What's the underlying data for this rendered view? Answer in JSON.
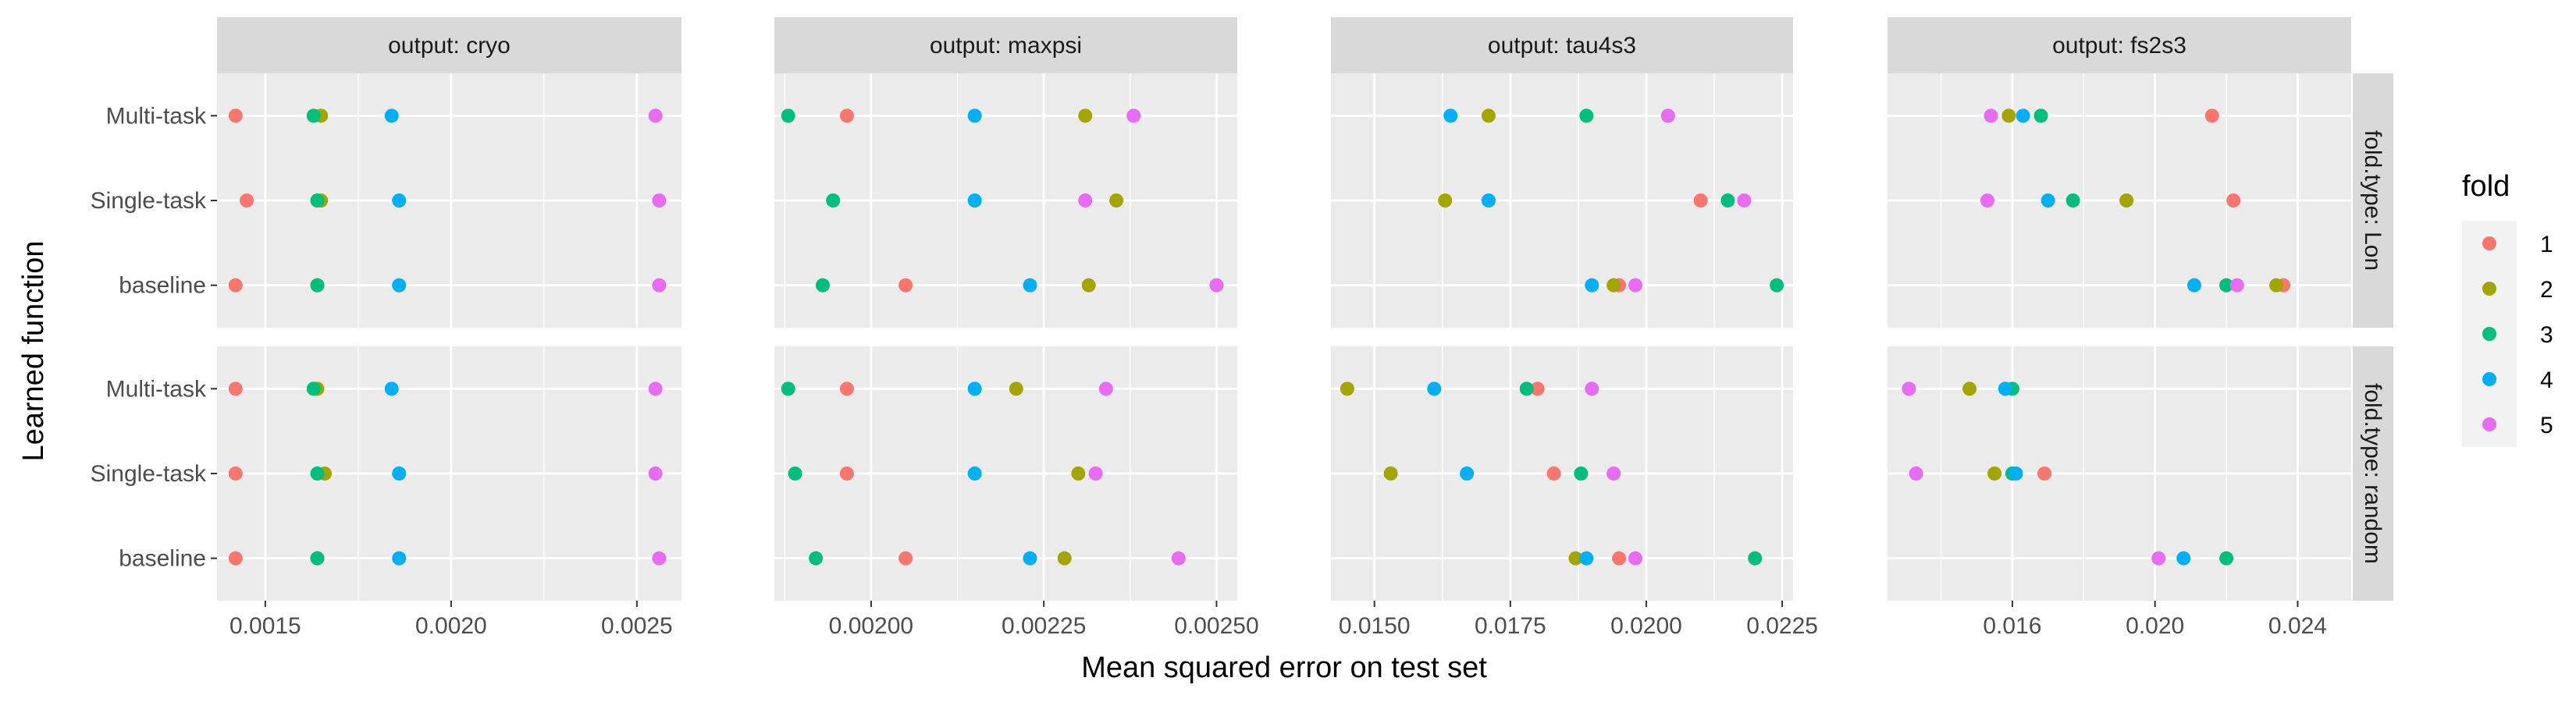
{
  "chart_data": {
    "type": "scatter",
    "xlabel": "Mean squared error on test set",
    "ylabel": "Learned function",
    "categories": [
      "Multi-task",
      "Single-task",
      "baseline"
    ],
    "legend": {
      "title": "fold",
      "position": "right",
      "entries": [
        {
          "label": "1",
          "color": "#F8766D"
        },
        {
          "label": "2",
          "color": "#A3A500"
        },
        {
          "label": "3",
          "color": "#00BF7D"
        },
        {
          "label": "4",
          "color": "#00B0F6"
        },
        {
          "label": "5",
          "color": "#E76BF3"
        }
      ]
    },
    "grid": true,
    "panel_background": "#EBEBEB",
    "strip_background": "#D9D9D9",
    "columns": [
      {
        "strip": "output: cryo",
        "xlim": [
          0.00137,
          0.00262
        ],
        "breaks": [
          0.0015,
          0.002,
          0.0025
        ],
        "tick_labels": [
          "0.0015",
          "0.0020",
          "0.0025"
        ]
      },
      {
        "strip": "output: maxpsi",
        "xlim": [
          0.00186,
          0.00253
        ],
        "breaks": [
          0.002,
          0.00225,
          0.0025
        ],
        "tick_labels": [
          "0.00200",
          "0.00225",
          "0.00250"
        ]
      },
      {
        "strip": "output: tau4s3",
        "xlim": [
          0.0142,
          0.0227
        ],
        "breaks": [
          0.015,
          0.0175,
          0.02,
          0.0225
        ],
        "tick_labels": [
          "0.0150",
          "0.0175",
          "0.0200",
          "0.0225"
        ]
      },
      {
        "strip": "output: fs2s3",
        "xlim": [
          0.0125,
          0.0255
        ],
        "breaks": [
          0.016,
          0.02,
          0.024
        ],
        "tick_labels": [
          "0.016",
          "0.020",
          "0.024"
        ]
      }
    ],
    "rows": [
      {
        "strip": "fold.type: Lon"
      },
      {
        "strip": "fold.type: random"
      }
    ],
    "panels": [
      {
        "row": 0,
        "col": 0,
        "series": {
          "Multi-task": [
            0.00142,
            0.00165,
            0.00163,
            0.00184,
            0.00255
          ],
          "Single-task": [
            0.00145,
            0.00165,
            0.00164,
            0.00186,
            0.00256
          ],
          "baseline": [
            0.00142,
            0.00164,
            0.00164,
            0.00186,
            0.00256
          ]
        }
      },
      {
        "row": 0,
        "col": 1,
        "series": {
          "Multi-task": [
            0.001965,
            0.00231,
            0.00188,
            0.00215,
            0.00238
          ],
          "Single-task": [
            null,
            0.002355,
            0.001945,
            0.00215,
            0.00231
          ],
          "baseline": [
            0.00205,
            0.002315,
            0.00193,
            0.00223,
            0.0025
          ]
        }
      },
      {
        "row": 0,
        "col": 2,
        "series": {
          "Multi-task": [
            0.0204,
            0.0171,
            0.0189,
            0.0164,
            0.0204
          ],
          "Single-task": [
            0.021,
            0.0163,
            0.0215,
            0.0171,
            0.0218
          ],
          "baseline": [
            0.0195,
            0.0194,
            0.0224,
            0.019,
            0.0198
          ]
        }
      },
      {
        "row": 0,
        "col": 3,
        "series": {
          "Multi-task": [
            0.0216,
            0.0159,
            0.0168,
            0.0163,
            0.0154
          ],
          "Single-task": [
            0.0222,
            0.0192,
            0.0177,
            0.017,
            0.0153
          ],
          "baseline": [
            0.0236,
            0.0234,
            0.022,
            0.0211,
            0.0223
          ]
        }
      },
      {
        "row": 1,
        "col": 0,
        "series": {
          "Multi-task": [
            0.00142,
            0.00164,
            0.00163,
            0.00184,
            0.00255
          ],
          "Single-task": [
            0.00142,
            0.00166,
            0.00164,
            0.00186,
            0.00255
          ],
          "baseline": [
            0.00142,
            0.00164,
            0.00164,
            0.00186,
            0.00256
          ]
        }
      },
      {
        "row": 1,
        "col": 1,
        "series": {
          "Multi-task": [
            0.001965,
            0.00221,
            0.00188,
            0.00215,
            0.00234
          ],
          "Single-task": [
            0.001965,
            0.0023,
            0.00189,
            0.00215,
            0.002325
          ],
          "baseline": [
            0.00205,
            0.00228,
            0.00192,
            0.00223,
            0.002445
          ]
        }
      },
      {
        "row": 1,
        "col": 2,
        "series": {
          "Multi-task": [
            0.018,
            0.0145,
            0.0178,
            0.0161,
            0.019
          ],
          "Single-task": [
            0.0183,
            0.0153,
            0.0188,
            0.0167,
            0.0194
          ],
          "baseline": [
            0.0195,
            0.0187,
            0.022,
            0.0189,
            0.0198
          ]
        }
      },
      {
        "row": 1,
        "col": 3,
        "series": {
          "Multi-task": [
            null,
            0.0148,
            0.016,
            0.0158,
            0.0131
          ],
          "Single-task": [
            0.0169,
            0.0155,
            0.016,
            0.0161,
            0.0133
          ],
          "baseline": [
            null,
            null,
            0.022,
            0.0208,
            0.0201
          ]
        }
      }
    ]
  }
}
